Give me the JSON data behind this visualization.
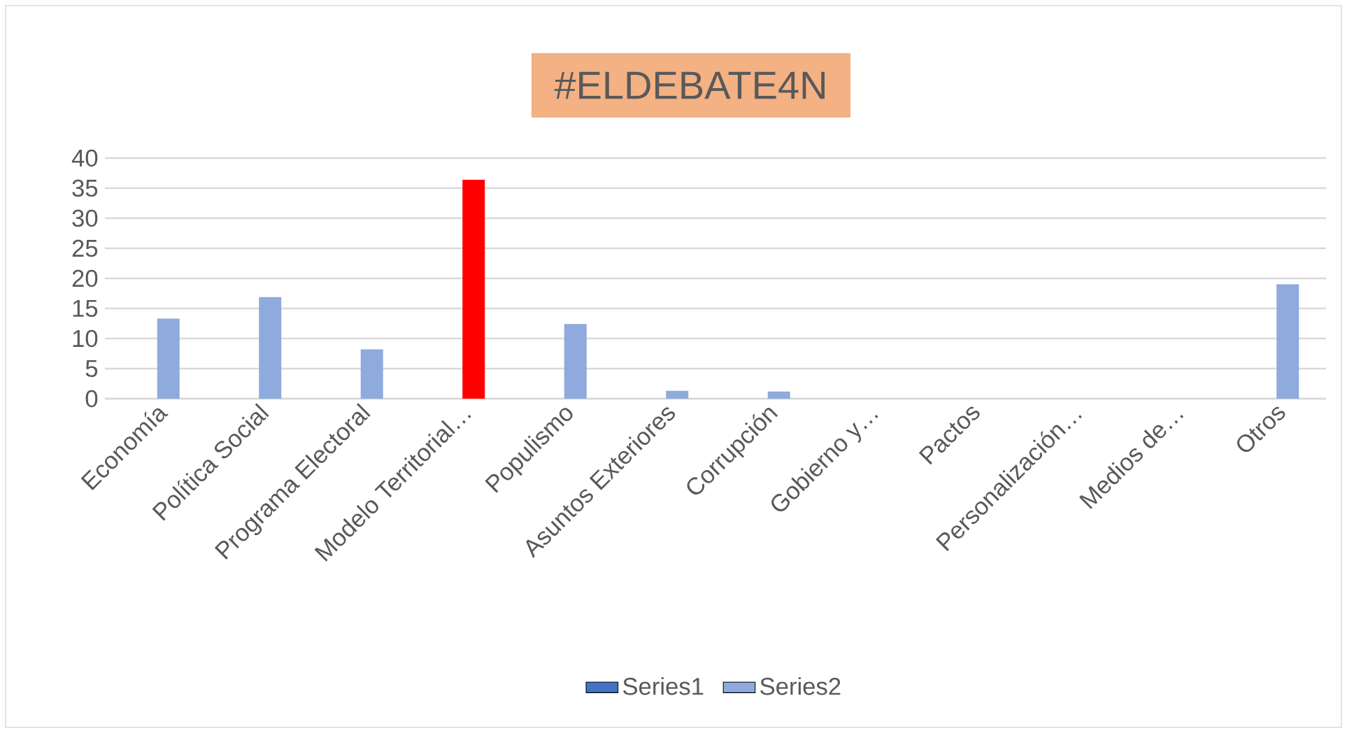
{
  "chart_data": {
    "type": "bar",
    "title": "#ELDEBATE4N",
    "categories": [
      "Economía",
      "Política Social",
      "Programa Electoral",
      "Modelo Territorial…",
      "Populismo",
      "Asuntos Exteriores",
      "Corrupción",
      "Gobierno y…",
      "Pactos",
      "Personalización…",
      "Medios de…",
      "Otros"
    ],
    "series": [
      {
        "name": "Series1",
        "color": "#4472c4",
        "values": [
          null,
          null,
          null,
          null,
          null,
          null,
          null,
          null,
          null,
          null,
          null,
          null
        ]
      },
      {
        "name": "Series2",
        "color": "#8faadc",
        "colors": [
          "#8faadc",
          "#8faadc",
          "#8faadc",
          "#ff0000",
          "#8faadc",
          "#8faadc",
          "#8faadc",
          "#8faadc",
          "#8faadc",
          "#8faadc",
          "#8faadc",
          "#8faadc"
        ],
        "values": [
          13.3,
          16.9,
          8.2,
          36.4,
          12.4,
          1.3,
          1.2,
          0,
          0,
          0,
          0,
          19.0
        ]
      }
    ],
    "ylim": [
      0,
      40
    ],
    "yticks": [
      0,
      5,
      10,
      15,
      20,
      25,
      30,
      35,
      40
    ],
    "grid": "y",
    "legend": "bottom"
  }
}
